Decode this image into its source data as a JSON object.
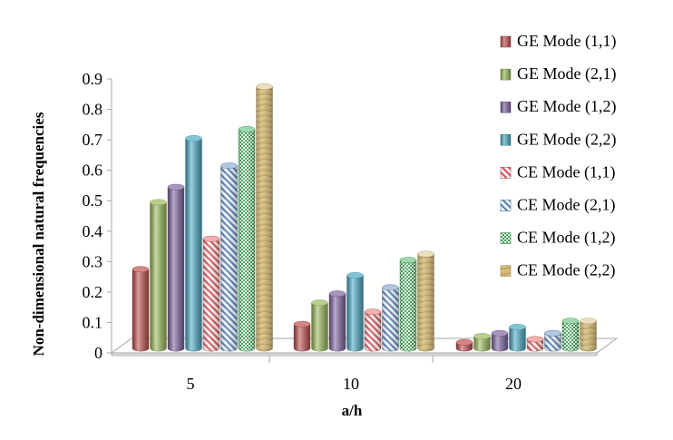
{
  "chart_data": {
    "type": "bar",
    "style": "3d-cylinder",
    "title": "",
    "xlabel": "a/h",
    "ylabel": "Non-dimensional natural frequencies",
    "categories": [
      "5",
      "10",
      "20"
    ],
    "ylim": [
      0,
      0.9
    ],
    "yticks": [
      "0",
      "0.1",
      "0.2",
      "0.3",
      "0.4",
      "0.5",
      "0.6",
      "0.7",
      "0.8",
      "0.9"
    ],
    "grid": false,
    "legend_position": "right",
    "series": [
      {
        "name": "GE Mode (1,1)",
        "values": [
          0.26,
          0.08,
          0.02
        ],
        "color": "#C0504D",
        "pattern": "solid"
      },
      {
        "name": "GE Mode (2,1)",
        "values": [
          0.48,
          0.15,
          0.04
        ],
        "color": "#9BBB59",
        "pattern": "solid"
      },
      {
        "name": "GE Mode (1,2)",
        "values": [
          0.53,
          0.18,
          0.05
        ],
        "color": "#8064A2",
        "pattern": "solid"
      },
      {
        "name": "GE Mode (2,2)",
        "values": [
          0.69,
          0.24,
          0.07
        ],
        "color": "#4BACC6",
        "pattern": "solid"
      },
      {
        "name": "CE Mode (1,1)",
        "values": [
          0.36,
          0.12,
          0.03
        ],
        "color": "#E05050",
        "pattern": "diag"
      },
      {
        "name": "CE Mode (2,1)",
        "values": [
          0.6,
          0.2,
          0.05
        ],
        "color": "#4F81BD",
        "pattern": "diag"
      },
      {
        "name": "CE Mode (1,2)",
        "values": [
          0.72,
          0.29,
          0.09
        ],
        "color": "#2EAA4A",
        "pattern": "check"
      },
      {
        "name": "CE Mode (2,2)",
        "values": [
          0.86,
          0.31,
          0.09
        ],
        "color": "#D4B870",
        "pattern": "wood"
      }
    ]
  }
}
